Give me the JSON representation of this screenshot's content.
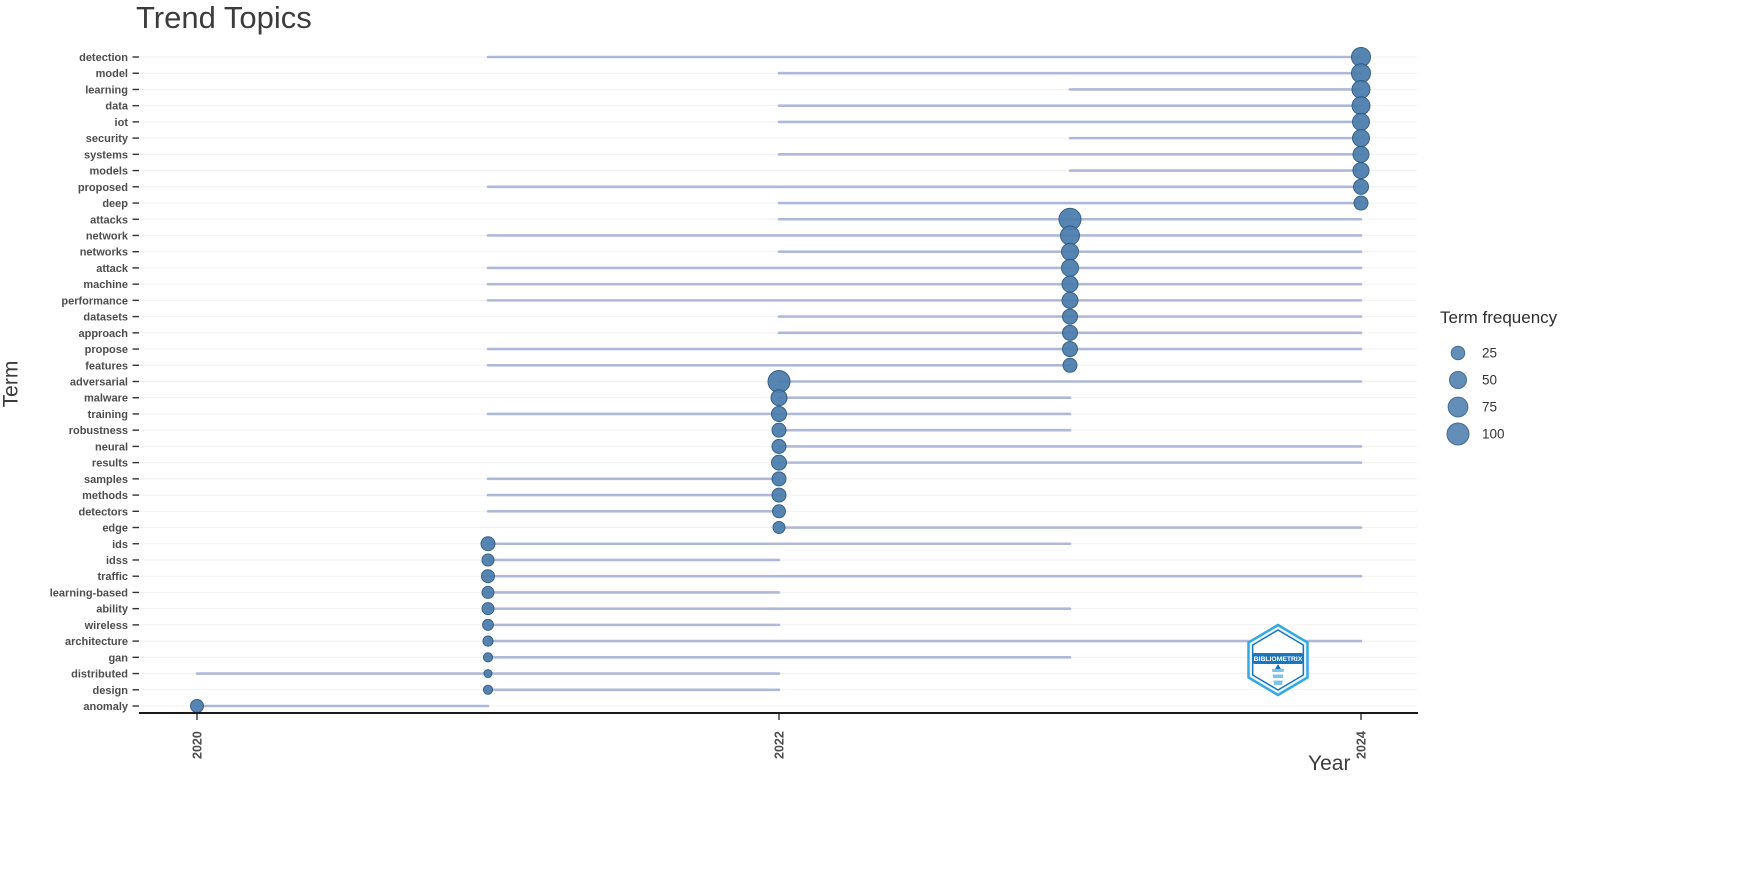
{
  "logo": {
    "text": "BIBLIOMETRIX"
  },
  "chart_data": {
    "type": "scatter",
    "title": "Trend Topics",
    "xlabel": "Year",
    "ylabel": "Term",
    "x_ticks": [
      2020,
      2022,
      2024
    ],
    "xlim": [
      2019.8,
      2024.2
    ],
    "grid": true,
    "legend": {
      "title": "Term frequency",
      "position": "right",
      "sizes": [
        25,
        50,
        75,
        100
      ]
    },
    "colors": {
      "dot_fill": "#4d7fae",
      "dot_stroke": "#2e5a80",
      "line": "#a8b2d6",
      "grid": "#f1f1f1",
      "axis_text": "#4d4d4d",
      "axis_line": "#1a1a1a"
    },
    "terms": [
      {
        "term": "detection",
        "q1": 2021,
        "median": 2024,
        "q3": 2024,
        "freq": 68
      },
      {
        "term": "model",
        "q1": 2022,
        "median": 2024,
        "q3": 2024,
        "freq": 68
      },
      {
        "term": "learning",
        "q1": 2023,
        "median": 2024,
        "q3": 2024,
        "freq": 58
      },
      {
        "term": "data",
        "q1": 2022,
        "median": 2024,
        "q3": 2024,
        "freq": 58
      },
      {
        "term": "iot",
        "q1": 2022,
        "median": 2024,
        "q3": 2024,
        "freq": 50
      },
      {
        "term": "security",
        "q1": 2023,
        "median": 2024,
        "q3": 2024,
        "freq": 50
      },
      {
        "term": "systems",
        "q1": 2022,
        "median": 2024,
        "q3": 2024,
        "freq": 42
      },
      {
        "term": "models",
        "q1": 2023,
        "median": 2024,
        "q3": 2024,
        "freq": 42
      },
      {
        "term": "proposed",
        "q1": 2021,
        "median": 2024,
        "q3": 2024,
        "freq": 35
      },
      {
        "term": "deep",
        "q1": 2022,
        "median": 2024,
        "q3": 2024,
        "freq": 28
      },
      {
        "term": "attacks",
        "q1": 2022,
        "median": 2023,
        "q3": 2024,
        "freq": 100
      },
      {
        "term": "network",
        "q1": 2021,
        "median": 2023,
        "q3": 2024,
        "freq": 68
      },
      {
        "term": "networks",
        "q1": 2022,
        "median": 2023,
        "q3": 2024,
        "freq": 50
      },
      {
        "term": "attack",
        "q1": 2021,
        "median": 2023,
        "q3": 2024,
        "freq": 50
      },
      {
        "term": "machine",
        "q1": 2021,
        "median": 2023,
        "q3": 2024,
        "freq": 42
      },
      {
        "term": "performance",
        "q1": 2021,
        "median": 2023,
        "q3": 2024,
        "freq": 42
      },
      {
        "term": "datasets",
        "q1": 2022,
        "median": 2023,
        "q3": 2024,
        "freq": 35
      },
      {
        "term": "approach",
        "q1": 2022,
        "median": 2023,
        "q3": 2024,
        "freq": 35
      },
      {
        "term": "propose",
        "q1": 2021,
        "median": 2023,
        "q3": 2024,
        "freq": 35
      },
      {
        "term": "features",
        "q1": 2021,
        "median": 2023,
        "q3": 2023,
        "freq": 28
      },
      {
        "term": "adversarial",
        "q1": 2022,
        "median": 2022,
        "q3": 2024,
        "freq": 100
      },
      {
        "term": "malware",
        "q1": 2022,
        "median": 2022,
        "q3": 2023,
        "freq": 42
      },
      {
        "term": "training",
        "q1": 2021,
        "median": 2022,
        "q3": 2023,
        "freq": 35
      },
      {
        "term": "robustness",
        "q1": 2022,
        "median": 2022,
        "q3": 2023,
        "freq": 28
      },
      {
        "term": "neural",
        "q1": 2022,
        "median": 2022,
        "q3": 2024,
        "freq": 28
      },
      {
        "term": "results",
        "q1": 2022,
        "median": 2022,
        "q3": 2024,
        "freq": 35
      },
      {
        "term": "samples",
        "q1": 2021,
        "median": 2022,
        "q3": 2022,
        "freq": 28
      },
      {
        "term": "methods",
        "q1": 2021,
        "median": 2022,
        "q3": 2022,
        "freq": 28
      },
      {
        "term": "detectors",
        "q1": 2021,
        "median": 2022,
        "q3": 2022,
        "freq": 22
      },
      {
        "term": "edge",
        "q1": 2022,
        "median": 2022,
        "q3": 2024,
        "freq": 17
      },
      {
        "term": "ids",
        "q1": 2021,
        "median": 2021,
        "q3": 2023,
        "freq": 28
      },
      {
        "term": "idss",
        "q1": 2021,
        "median": 2021,
        "q3": 2022,
        "freq": 17
      },
      {
        "term": "traffic",
        "q1": 2021,
        "median": 2021,
        "q3": 2024,
        "freq": 22
      },
      {
        "term": "learning-based",
        "q1": 2021,
        "median": 2021,
        "q3": 2022,
        "freq": 17
      },
      {
        "term": "ability",
        "q1": 2021,
        "median": 2021,
        "q3": 2023,
        "freq": 17
      },
      {
        "term": "wireless",
        "q1": 2021,
        "median": 2021,
        "q3": 2022,
        "freq": 12
      },
      {
        "term": "architecture",
        "q1": 2021,
        "median": 2021,
        "q3": 2024,
        "freq": 9
      },
      {
        "term": "gan",
        "q1": 2021,
        "median": 2021,
        "q3": 2023,
        "freq": 6
      },
      {
        "term": "distributed",
        "q1": 2020,
        "median": 2021,
        "q3": 2022,
        "freq": 3
      },
      {
        "term": "design",
        "q1": 2021,
        "median": 2021,
        "q3": 2022,
        "freq": 6
      },
      {
        "term": "anomaly",
        "q1": 2020,
        "median": 2020,
        "q3": 2021,
        "freq": 22
      }
    ]
  }
}
